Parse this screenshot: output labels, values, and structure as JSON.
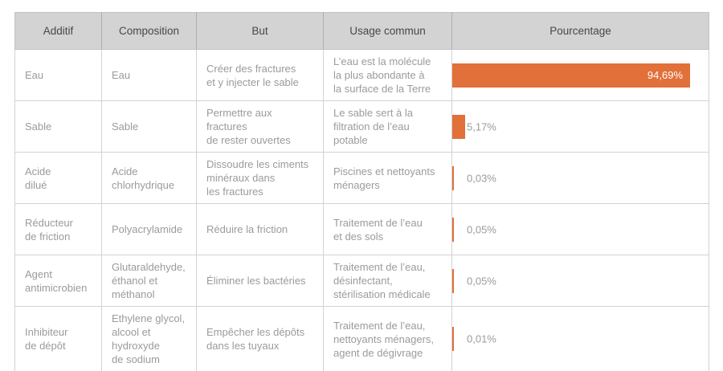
{
  "colors": {
    "bar": "#e2703a",
    "header_bg": "#d3d3d3",
    "header_text": "#474747",
    "body_text": "#9b9b9b",
    "border": "#d2d2d2",
    "bar_label_inside": "#ffffff"
  },
  "table": {
    "headers": [
      "Additif",
      "Composition",
      "But",
      "Usage commun",
      "Pourcentage"
    ],
    "rows": [
      {
        "additif": "Eau",
        "composition": "Eau",
        "but": "Créer des fractures\net y injecter le sable",
        "usage": "L’eau est la molécule\nla plus abondante à\nla surface de la Terre",
        "pct": 94.69,
        "pct_label": "94,69%"
      },
      {
        "additif": "Sable",
        "composition": "Sable",
        "but": "Permettre aux fractures\nde rester ouvertes",
        "usage": "Le sable sert à la\nfiltration de l’eau\npotable",
        "pct": 5.17,
        "pct_label": "5,17%"
      },
      {
        "additif": "Acide\ndilué",
        "composition": "Acide\nchlorhydrique",
        "but": "Dissoudre les ciments\nminéraux dans\nles fractures",
        "usage": "Piscines et nettoyants\nménagers",
        "pct": 0.03,
        "pct_label": "0,03%"
      },
      {
        "additif": "Réducteur\nde friction",
        "composition": "Polyacrylamide",
        "but": "Réduire la friction",
        "usage": "Traitement de l’eau\net des sols",
        "pct": 0.05,
        "pct_label": "0,05%"
      },
      {
        "additif": "Agent\nantimicrobien",
        "composition": "Glutaraldehyde,\néthanol et\nméthanol",
        "but": "Éliminer les bactéries",
        "usage": "Traitement de l’eau,\ndésinfectant,\nstérilisation médicale",
        "pct": 0.05,
        "pct_label": "0,05%"
      },
      {
        "additif": "Inhibiteur\nde dépôt",
        "composition": "Ethylene glycol,\nalcool et\nhydroxyde\nde sodium",
        "but": "Empêcher les dépôts\ndans les tuyaux",
        "usage": "Traitement de l’eau,\nnettoyants ménagers,\nagent de dégivrage",
        "pct": 0.01,
        "pct_label": "0,01%"
      }
    ]
  },
  "chart_data": {
    "type": "bar",
    "orientation": "horizontal",
    "column": "Pourcentage",
    "categories": [
      "Eau",
      "Sable",
      "Acide dilué",
      "Réducteur de friction",
      "Agent antimicrobien",
      "Inhibiteur de dépôt"
    ],
    "values": [
      94.69,
      5.17,
      0.03,
      0.05,
      0.05,
      0.01
    ],
    "value_labels": [
      "94,69%",
      "5,17%",
      "0,03%",
      "0,05%",
      "0,05%",
      "0,01%"
    ],
    "xlim": [
      0,
      100
    ],
    "bar_color": "#e2703a",
    "grid": false,
    "legend": false
  }
}
